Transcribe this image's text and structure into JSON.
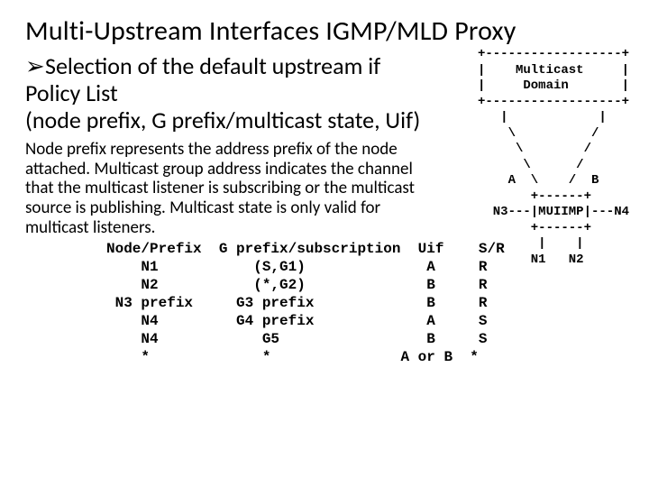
{
  "title": "Multi-Upstream Interfaces IGMP/MLD Proxy",
  "bullet": {
    "marker": "➢",
    "line1": "Selection of the default upstream if",
    "line2": "Policy List",
    "line3": "(node prefix, G prefix/multicast state, Uif)"
  },
  "body": "Node prefix represents the address prefix of the node attached.\nMulticast group address indicates the channel that the multicast listener is subscribing or the multicast source is publishing.\nMulticast state is only valid for multicast listeners.",
  "diagram": "+------------------+\n|    Multicast     |\n|     Domain       |\n+------------------+\n   |            |\n    \\          /\n     \\        /\n      \\      /\n    A  \\    /  B\n       +------+\n  N3---|MUIIMP|---N4\n       +------+\n        |    |\n       N1   N2",
  "table": "Node/Prefix  G prefix/subscription  Uif    S/R\n    N1           (S,G1)              A     R\n    N2           (*,G2)              B     R\n N3 prefix     G3 prefix             B     R\n    N4         G4 prefix             A     S\n    N4            G5                 B     S\n    *             *               A or B  *",
  "colors": {
    "background": "#ffffff",
    "text": "#000000"
  }
}
